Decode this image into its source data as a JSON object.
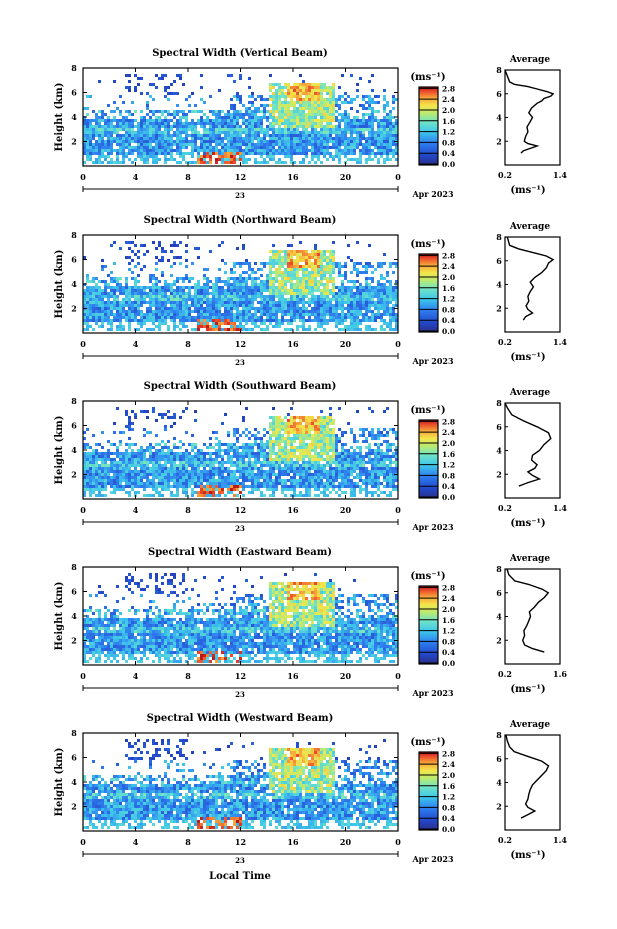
{
  "chart_data": [
    {
      "type": "heatmap",
      "title": "Spectral Width (Vertical Beam)",
      "ylabel": "Height (km)",
      "y_ticks": [
        "2",
        "4",
        "6",
        "8"
      ],
      "x_ticks": [
        "0",
        "4",
        "8",
        "12",
        "16",
        "20",
        "0"
      ],
      "day_label": "23",
      "month_label": "Apr 2023",
      "colorbar": {
        "unit": "(ms⁻¹)",
        "ticks": [
          "0.0",
          "0.4",
          "0.8",
          "1.2",
          "1.6",
          "2.0",
          "2.4",
          "2.8"
        ]
      },
      "profile": {
        "title": "Average",
        "xlabel": "(ms⁻¹)",
        "x_ticks": [
          "0.2",
          "1.4"
        ],
        "y_ticks": [
          "2",
          "4",
          "6",
          "8"
        ],
        "xlim": [
          0.2,
          1.4
        ],
        "points": [
          [
            0.55,
            1.0
          ],
          [
            0.6,
            1.2
          ],
          [
            0.75,
            1.4
          ],
          [
            0.9,
            1.6
          ],
          [
            0.7,
            1.8
          ],
          [
            0.62,
            2.0
          ],
          [
            0.65,
            2.4
          ],
          [
            0.7,
            2.8
          ],
          [
            0.68,
            3.2
          ],
          [
            0.74,
            3.6
          ],
          [
            0.8,
            4.0
          ],
          [
            0.72,
            4.4
          ],
          [
            0.78,
            4.8
          ],
          [
            0.9,
            5.2
          ],
          [
            1.0,
            5.4
          ],
          [
            1.05,
            5.6
          ],
          [
            1.2,
            5.8
          ],
          [
            1.25,
            6.0
          ],
          [
            1.1,
            6.2
          ],
          [
            0.9,
            6.4
          ],
          [
            0.7,
            6.6
          ],
          [
            0.4,
            6.8
          ],
          [
            0.3,
            7.0
          ],
          [
            0.25,
            7.5
          ],
          [
            0.2,
            8.0
          ]
        ]
      }
    },
    {
      "type": "heatmap",
      "title": "Spectral Width (Northward Beam)",
      "ylabel": "Height (km)",
      "y_ticks": [
        "2",
        "4",
        "6",
        "8"
      ],
      "x_ticks": [
        "0",
        "4",
        "8",
        "12",
        "16",
        "20",
        "0"
      ],
      "day_label": "23",
      "month_label": "Apr 2023",
      "colorbar": {
        "unit": "(ms⁻¹)",
        "ticks": [
          "0.0",
          "0.4",
          "0.8",
          "1.2",
          "1.6",
          "2.0",
          "2.4",
          "2.8"
        ]
      },
      "profile": {
        "title": "Average",
        "xlabel": "(ms⁻¹)",
        "x_ticks": [
          "0.2",
          "1.4"
        ],
        "y_ticks": [
          "2",
          "4",
          "6",
          "8"
        ],
        "xlim": [
          0.2,
          1.4
        ],
        "points": [
          [
            0.6,
            1.0
          ],
          [
            0.65,
            1.3
          ],
          [
            0.8,
            1.6
          ],
          [
            0.7,
            1.9
          ],
          [
            0.66,
            2.2
          ],
          [
            0.72,
            2.6
          ],
          [
            0.7,
            3.0
          ],
          [
            0.75,
            3.4
          ],
          [
            0.82,
            3.8
          ],
          [
            0.75,
            4.2
          ],
          [
            0.85,
            4.6
          ],
          [
            1.0,
            5.0
          ],
          [
            1.1,
            5.4
          ],
          [
            1.15,
            5.8
          ],
          [
            1.25,
            6.1
          ],
          [
            1.1,
            6.4
          ],
          [
            0.8,
            6.7
          ],
          [
            0.5,
            7.0
          ],
          [
            0.3,
            7.3
          ],
          [
            0.25,
            8.0
          ]
        ]
      }
    },
    {
      "type": "heatmap",
      "title": "Spectral Width (Southward Beam)",
      "ylabel": "Height (km)",
      "y_ticks": [
        "2",
        "4",
        "6",
        "8"
      ],
      "x_ticks": [
        "0",
        "4",
        "8",
        "12",
        "16",
        "20",
        "0"
      ],
      "day_label": "23",
      "month_label": "Apr 2023",
      "colorbar": {
        "unit": "(ms⁻¹)",
        "ticks": [
          "0.0",
          "0.4",
          "0.8",
          "1.2",
          "1.6",
          "2.0",
          "2.4",
          "2.8"
        ]
      },
      "profile": {
        "title": "Average",
        "xlabel": "(ms⁻¹)",
        "x_ticks": [
          "0.2",
          "1.4"
        ],
        "y_ticks": [
          "2",
          "4",
          "6",
          "8"
        ],
        "xlim": [
          0.2,
          1.4
        ],
        "points": [
          [
            0.5,
            1.0
          ],
          [
            0.7,
            1.3
          ],
          [
            0.95,
            1.6
          ],
          [
            0.8,
            1.9
          ],
          [
            0.7,
            2.2
          ],
          [
            0.85,
            2.5
          ],
          [
            0.9,
            2.8
          ],
          [
            0.78,
            3.2
          ],
          [
            0.8,
            3.6
          ],
          [
            0.95,
            4.0
          ],
          [
            1.05,
            4.5
          ],
          [
            1.2,
            5.0
          ],
          [
            1.15,
            5.5
          ],
          [
            0.9,
            6.0
          ],
          [
            0.6,
            6.5
          ],
          [
            0.35,
            7.0
          ],
          [
            0.25,
            7.6
          ],
          [
            0.2,
            8.0
          ]
        ]
      }
    },
    {
      "type": "heatmap",
      "title": "Spectral Width (Eastward Beam)",
      "ylabel": "Height (km)",
      "y_ticks": [
        "2",
        "4",
        "6",
        "8"
      ],
      "x_ticks": [
        "0",
        "4",
        "8",
        "12",
        "16",
        "20",
        "0"
      ],
      "day_label": "23",
      "month_label": "Apr 2023",
      "colorbar": {
        "unit": "(ms⁻¹)",
        "ticks": [
          "0.0",
          "0.4",
          "0.8",
          "1.2",
          "1.6",
          "2.0",
          "2.4",
          "2.8"
        ]
      },
      "profile": {
        "title": "Average",
        "xlabel": "(ms⁻¹)",
        "x_ticks": [
          "0.2",
          "1.6"
        ],
        "y_ticks": [
          "2",
          "4",
          "6",
          "8"
        ],
        "xlim": [
          0.2,
          1.6
        ],
        "points": [
          [
            1.2,
            1.0
          ],
          [
            0.9,
            1.3
          ],
          [
            0.7,
            1.6
          ],
          [
            0.65,
            2.0
          ],
          [
            0.7,
            2.4
          ],
          [
            0.68,
            2.8
          ],
          [
            0.75,
            3.2
          ],
          [
            0.8,
            3.6
          ],
          [
            0.85,
            4.0
          ],
          [
            0.82,
            4.4
          ],
          [
            0.95,
            4.8
          ],
          [
            1.05,
            5.2
          ],
          [
            1.2,
            5.6
          ],
          [
            1.3,
            6.0
          ],
          [
            1.15,
            6.3
          ],
          [
            0.8,
            6.7
          ],
          [
            0.45,
            7.0
          ],
          [
            0.3,
            7.5
          ],
          [
            0.25,
            8.0
          ]
        ]
      }
    },
    {
      "type": "heatmap",
      "title": "Spectral Width (Westward Beam)",
      "ylabel": "Height (km)",
      "y_ticks": [
        "2",
        "4",
        "6",
        "8"
      ],
      "x_ticks": [
        "0",
        "4",
        "8",
        "12",
        "16",
        "20",
        "0"
      ],
      "day_label": "23",
      "month_label": "Apr 2023",
      "colorbar": {
        "unit": "(ms⁻¹)",
        "ticks": [
          "0.0",
          "0.4",
          "0.8",
          "1.2",
          "1.6",
          "2.0",
          "2.4",
          "2.8"
        ]
      },
      "profile": {
        "title": "Average",
        "xlabel": "(ms⁻¹)",
        "x_ticks": [
          "0.2",
          "1.4"
        ],
        "y_ticks": [
          "2",
          "4",
          "6",
          "8"
        ],
        "xlim": [
          0.2,
          1.4
        ],
        "points": [
          [
            0.55,
            1.0
          ],
          [
            0.7,
            1.3
          ],
          [
            0.85,
            1.6
          ],
          [
            0.7,
            1.9
          ],
          [
            0.65,
            2.2
          ],
          [
            0.7,
            2.6
          ],
          [
            0.72,
            3.0
          ],
          [
            0.75,
            3.4
          ],
          [
            0.8,
            3.8
          ],
          [
            0.9,
            4.2
          ],
          [
            1.0,
            4.6
          ],
          [
            1.1,
            5.0
          ],
          [
            1.15,
            5.4
          ],
          [
            1.0,
            5.8
          ],
          [
            0.7,
            6.2
          ],
          [
            0.4,
            6.6
          ],
          [
            0.3,
            7.0
          ],
          [
            0.25,
            7.5
          ],
          [
            0.22,
            8.0
          ]
        ]
      }
    }
  ],
  "footer": {
    "xlabel": "Local Time"
  }
}
